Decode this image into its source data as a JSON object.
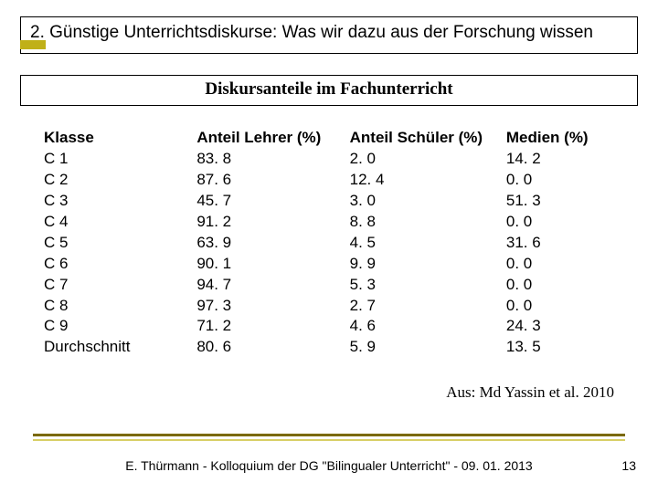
{
  "title": "2. Günstige Unterrichtsdiskurse: Was wir dazu aus der Forschung wissen",
  "subtitle": "Diskursanteile im Fachunterricht",
  "table": {
    "columns": [
      "Klasse",
      "Anteil Lehrer (%)",
      "Anteil Schüler (%)",
      "Medien (%)"
    ],
    "rows": [
      [
        "C 1",
        "83. 8",
        "2. 0",
        "14. 2"
      ],
      [
        "C 2",
        "87. 6",
        "12. 4",
        "0. 0"
      ],
      [
        "C 3",
        "45. 7",
        "3. 0",
        "51. 3"
      ],
      [
        "C 4",
        "91. 2",
        "8. 8",
        "0. 0"
      ],
      [
        "C 5",
        "63. 9",
        "4. 5",
        "31. 6"
      ],
      [
        "C 6",
        "90. 1",
        "9. 9",
        "0. 0"
      ],
      [
        "C 7",
        "94. 7",
        "5. 3",
        "0. 0"
      ],
      [
        "C 8",
        "97. 3",
        "2. 7",
        "0. 0"
      ],
      [
        "C 9",
        "71. 2",
        "4. 6",
        "24. 3"
      ],
      [
        "Durchschnitt",
        "80. 6",
        "5. 9",
        "13. 5"
      ]
    ]
  },
  "source": "Aus: Md Yassin et al. 2010",
  "footer": "E. Thürmann - Kolloquium der DG \"Bilingualer Unterricht\" - 09. 01. 2013",
  "page_number": "13",
  "colors": {
    "accent": "#c0b018",
    "rule_dark": "#7b6a00",
    "rule_light": "#d8cf66",
    "background": "#ffffff",
    "text": "#000000"
  },
  "typography": {
    "title_fontsize": 19,
    "subtitle_fontsize": 19,
    "body_fontsize": 17,
    "footer_fontsize": 14,
    "subtitle_font_family": "Times New Roman",
    "body_font_family": "Arial"
  }
}
